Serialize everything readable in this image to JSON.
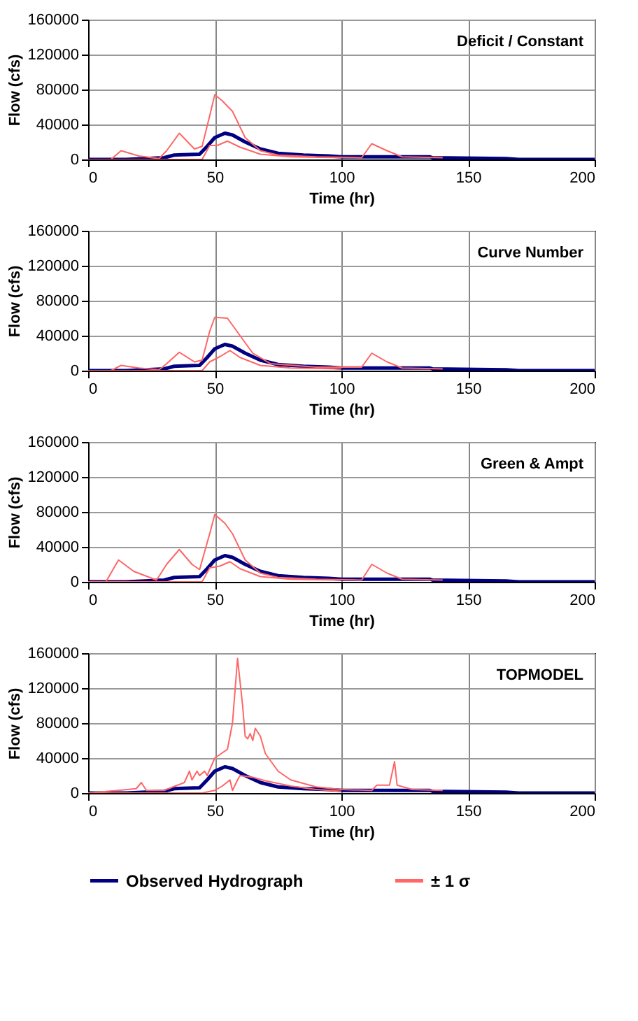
{
  "chart_data": [
    {
      "type": "line",
      "title": "Deficit / Constant",
      "xlabel": "Time (hr)",
      "ylabel": "Flow (cfs)",
      "xlim": [
        0,
        200
      ],
      "xticks": [
        0,
        50,
        100,
        150,
        200
      ],
      "ylim": [
        0,
        160000
      ],
      "yticks": [
        0,
        40000,
        80000,
        120000,
        160000
      ],
      "grid": true,
      "series": [
        {
          "color": "#000080",
          "x": [
            0,
            15,
            30,
            34,
            44,
            47,
            50,
            54,
            57,
            62,
            68,
            75,
            85,
            95,
            100,
            135,
            136,
            165,
            170,
            200
          ],
          "values": [
            0,
            0,
            2000,
            5000,
            6000,
            15000,
            25000,
            30000,
            28000,
            20000,
            12000,
            7000,
            5000,
            4000,
            3000,
            3000,
            2000,
            1000,
            0,
            0
          ]
        },
        {
          "color": "#ff6666",
          "x": [
            0,
            9,
            13,
            20,
            28,
            31,
            36,
            42,
            45,
            48,
            50,
            53,
            57,
            62,
            68,
            75,
            90,
            108,
            112,
            118,
            124,
            140
          ],
          "values": [
            0,
            0,
            10000,
            4000,
            1000,
            10000,
            30000,
            12000,
            15000,
            50000,
            74000,
            67000,
            55000,
            25000,
            10000,
            5000,
            3000,
            2000,
            18000,
            10000,
            3000,
            2000
          ]
        },
        {
          "color": "#ff6666",
          "x": [
            0,
            30,
            45,
            48,
            51,
            55,
            60,
            68,
            80,
            100
          ],
          "values": [
            0,
            0,
            0,
            16000,
            16000,
            21000,
            14000,
            6000,
            3000,
            2000
          ]
        }
      ]
    },
    {
      "type": "line",
      "title": "Curve Number",
      "xlabel": "Time (hr)",
      "ylabel": "Flow (cfs)",
      "xlim": [
        0,
        200
      ],
      "xticks": [
        0,
        50,
        100,
        150,
        200
      ],
      "ylim": [
        0,
        160000
      ],
      "yticks": [
        0,
        40000,
        80000,
        120000,
        160000
      ],
      "grid": true,
      "series": [
        {
          "color": "#000080",
          "x": [
            0,
            15,
            30,
            34,
            44,
            47,
            50,
            54,
            57,
            62,
            68,
            75,
            85,
            95,
            100,
            135,
            136,
            165,
            170,
            200
          ],
          "values": [
            0,
            0,
            2000,
            5000,
            6000,
            15000,
            25000,
            30000,
            28000,
            20000,
            12000,
            7000,
            5000,
            4000,
            3000,
            3000,
            2000,
            1000,
            0,
            0
          ]
        },
        {
          "color": "#ff6666",
          "x": [
            0,
            9,
            13,
            20,
            28,
            31,
            36,
            42,
            45,
            48,
            50,
            55,
            60,
            65,
            72,
            90,
            108,
            112,
            118,
            124,
            140
          ],
          "values": [
            0,
            0,
            6000,
            3000,
            1000,
            8000,
            21000,
            10000,
            12000,
            45000,
            61000,
            60000,
            40000,
            20000,
            8000,
            4000,
            4000,
            20000,
            10000,
            3000,
            2000
          ]
        },
        {
          "color": "#ff6666",
          "x": [
            0,
            45,
            48,
            52,
            56,
            60,
            68,
            80,
            100
          ],
          "values": [
            0,
            0,
            10000,
            16000,
            23000,
            15000,
            6000,
            3000,
            2000
          ]
        }
      ]
    },
    {
      "type": "line",
      "title": "Green & Ampt",
      "xlabel": "Time (hr)",
      "ylabel": "Flow (cfs)",
      "xlim": [
        0,
        200
      ],
      "xticks": [
        0,
        50,
        100,
        150,
        200
      ],
      "ylim": [
        0,
        160000
      ],
      "yticks": [
        0,
        40000,
        80000,
        120000,
        160000
      ],
      "grid": true,
      "series": [
        {
          "color": "#000080",
          "x": [
            0,
            15,
            30,
            34,
            44,
            47,
            50,
            54,
            57,
            62,
            68,
            75,
            85,
            95,
            100,
            135,
            136,
            165,
            170,
            200
          ],
          "values": [
            0,
            0,
            2000,
            5000,
            6000,
            15000,
            25000,
            30000,
            28000,
            20000,
            12000,
            7000,
            5000,
            4000,
            3000,
            3000,
            2000,
            1000,
            0,
            0
          ]
        },
        {
          "color": "#ff6666",
          "x": [
            0,
            7,
            12,
            18,
            27,
            31,
            36,
            41,
            44,
            48,
            50,
            54,
            57,
            62,
            68,
            75,
            90,
            108,
            112,
            118,
            124,
            140
          ],
          "values": [
            0,
            0,
            25000,
            12000,
            2000,
            20000,
            37000,
            20000,
            14000,
            55000,
            77000,
            67000,
            55000,
            25000,
            10000,
            5000,
            3000,
            2000,
            20000,
            10000,
            3000,
            2000
          ]
        },
        {
          "color": "#ff6666",
          "x": [
            0,
            45,
            48,
            52,
            56,
            60,
            68,
            80,
            100
          ],
          "values": [
            0,
            0,
            16000,
            18000,
            23000,
            15000,
            6000,
            3000,
            2000
          ]
        }
      ]
    },
    {
      "type": "line",
      "title": "TOPMODEL",
      "xlabel": "Time (hr)",
      "ylabel": "Flow (cfs)",
      "xlim": [
        0,
        200
      ],
      "xticks": [
        0,
        50,
        100,
        150,
        200
      ],
      "ylim": [
        0,
        160000
      ],
      "yticks": [
        0,
        40000,
        80000,
        120000,
        160000
      ],
      "grid": true,
      "legend": "bottom",
      "series": [
        {
          "name": "Observed Hydrograph",
          "color": "#000080",
          "x": [
            0,
            15,
            30,
            34,
            44,
            47,
            50,
            54,
            57,
            62,
            68,
            75,
            85,
            95,
            100,
            135,
            136,
            165,
            170,
            200
          ],
          "values": [
            0,
            0,
            2000,
            5000,
            6000,
            15000,
            25000,
            30000,
            28000,
            20000,
            12000,
            7000,
            5000,
            4000,
            3000,
            3000,
            2000,
            1000,
            0,
            0
          ]
        },
        {
          "name": "± 1 σ",
          "color": "#ff6666",
          "x": [
            0,
            12,
            19,
            21,
            23,
            30,
            38,
            40,
            41,
            43,
            44,
            46,
            47,
            50,
            55,
            57,
            59,
            61,
            62,
            63,
            64,
            65,
            66,
            68,
            70,
            75,
            80,
            90,
            100,
            112,
            114,
            119,
            121,
            122,
            128,
            140
          ],
          "values": [
            0,
            3000,
            5000,
            12000,
            3000,
            3000,
            12000,
            25000,
            15000,
            25000,
            20000,
            25000,
            20000,
            40000,
            50000,
            80000,
            154000,
            100000,
            65000,
            62000,
            68000,
            60000,
            74000,
            65000,
            45000,
            25000,
            15000,
            7000,
            4000,
            3000,
            9000,
            9000,
            36000,
            9000,
            4000,
            3000
          ]
        },
        {
          "color": "#ff6666",
          "x": [
            0,
            45,
            50,
            53,
            56,
            57,
            59,
            60,
            65,
            70,
            80,
            90,
            100
          ],
          "values": [
            0,
            0,
            3000,
            8000,
            15000,
            3000,
            15000,
            20000,
            18000,
            14000,
            8000,
            4000,
            2000
          ]
        }
      ]
    }
  ]
}
